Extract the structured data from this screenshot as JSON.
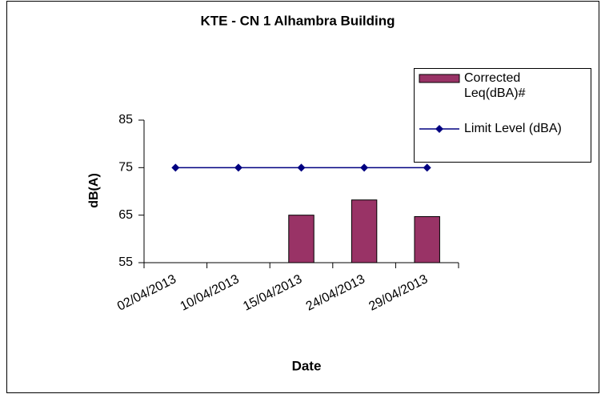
{
  "chart_data": {
    "type": "bar",
    "title": "KTE - CN 1 Alhambra Building",
    "x_label": "Date",
    "y_label": "dB(A)",
    "categories": [
      "02/04/2013",
      "10/04/2013",
      "15/04/2013",
      "24/04/2013",
      "29/04/2013"
    ],
    "series": [
      {
        "name": "Corrected Leq(dBA)#",
        "type": "bar",
        "color": "#993366",
        "values": [
          null,
          null,
          65,
          68.2,
          64.7
        ]
      },
      {
        "name": "Limit Level (dBA)",
        "type": "line",
        "color": "#000080",
        "values": [
          75,
          75,
          75,
          75,
          75
        ]
      }
    ],
    "ylim": [
      55,
      85
    ],
    "yticks": [
      55,
      65,
      75,
      85
    ],
    "grid": false,
    "legend": "upper right"
  }
}
